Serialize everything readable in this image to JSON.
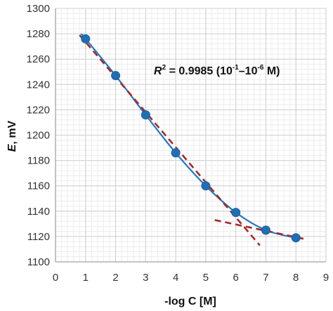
{
  "chart_data": {
    "type": "scatter",
    "xlabel": "-log C [M]",
    "ylabel_main": "E",
    "ylabel_unit": ", mV",
    "xlim": [
      0,
      9
    ],
    "ylim": [
      1100,
      1300
    ],
    "x_major_step": 1,
    "y_major_step": 20,
    "x_minor_step": 0.2,
    "y_minor_step": 4,
    "grid": true,
    "minor_grid": true,
    "x_ticks": [
      "0",
      "1",
      "2",
      "3",
      "4",
      "5",
      "6",
      "7",
      "8",
      "9"
    ],
    "y_ticks": [
      "1100",
      "1120",
      "1140",
      "1160",
      "1180",
      "1200",
      "1220",
      "1240",
      "1260",
      "1280",
      "1300"
    ],
    "annotation": {
      "r_symbol": "R",
      "r_exponent": "2",
      "text_eq": " = 0.9985 (10",
      "exp1": "-1",
      "dash": "–10",
      "exp2": "-6",
      "text_end": " M)"
    },
    "series": [
      {
        "kind": "points",
        "x": [
          1,
          2,
          3,
          4,
          5,
          6,
          7,
          8
        ],
        "y": [
          1276,
          1247,
          1216,
          1186,
          1160,
          1139,
          1125,
          1119
        ],
        "color": "#1f6fb6"
      },
      {
        "kind": "smooth-fit",
        "x": [
          0.85,
          1,
          2,
          3,
          4,
          5,
          6,
          7,
          8,
          8.15
        ],
        "y": [
          1280,
          1276,
          1247,
          1216,
          1186,
          1160,
          1139,
          1125,
          1119,
          1119
        ],
        "color": "#1f7ac4"
      },
      {
        "kind": "dashed-linear-fit",
        "x": [
          0.8,
          6.8
        ],
        "y": [
          1279,
          1113
        ],
        "color": "#a52a2a"
      },
      {
        "kind": "dashed-linear-fit",
        "x": [
          5.3,
          8.3
        ],
        "y": [
          1133,
          1118
        ],
        "color": "#a52a2a"
      }
    ]
  }
}
